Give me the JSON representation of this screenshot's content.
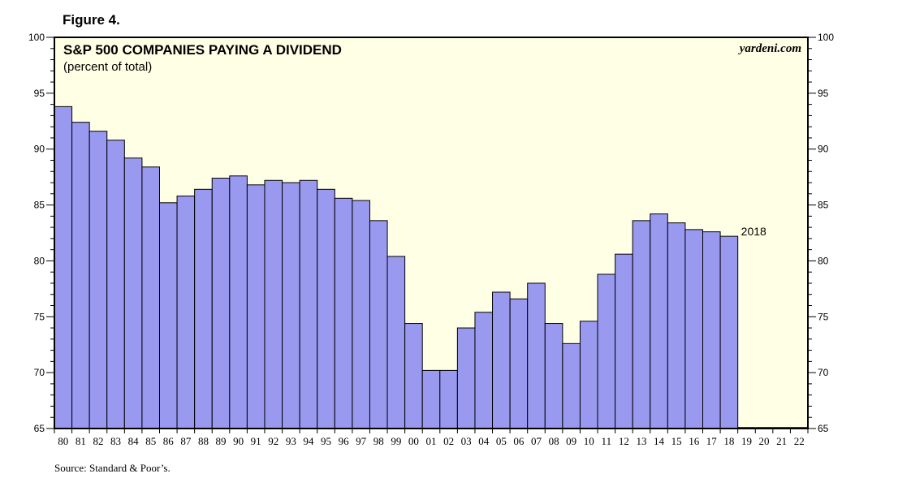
{
  "figure_label": "Figure 4.",
  "source": "Source: Standard & Poor’s.",
  "colors": {
    "plot_bg": "#ffffe6",
    "bar_fill": "#9999f0",
    "bar_stroke": "#000000"
  },
  "chart_data": {
    "type": "bar",
    "title": "S&P 500 COMPANIES PAYING A DIVIDEND",
    "subtitle": "(percent of total)",
    "watermark": "yardeni.com",
    "ylim": [
      65,
      100
    ],
    "yticks": [
      65,
      70,
      75,
      80,
      85,
      90,
      95,
      100
    ],
    "grid": false,
    "categories": [
      "80",
      "81",
      "82",
      "83",
      "84",
      "85",
      "86",
      "87",
      "88",
      "89",
      "90",
      "91",
      "92",
      "93",
      "94",
      "95",
      "96",
      "97",
      "98",
      "99",
      "00",
      "01",
      "02",
      "03",
      "04",
      "05",
      "06",
      "07",
      "08",
      "09",
      "10",
      "11",
      "12",
      "13",
      "14",
      "15",
      "16",
      "17",
      "18",
      "19",
      "20",
      "21",
      "22"
    ],
    "values": [
      93.8,
      92.4,
      91.6,
      90.8,
      89.2,
      88.4,
      85.2,
      85.8,
      86.4,
      87.4,
      87.6,
      86.8,
      87.2,
      87.0,
      87.2,
      86.4,
      85.6,
      85.4,
      83.6,
      80.4,
      74.4,
      70.2,
      70.2,
      74.0,
      75.4,
      77.2,
      76.6,
      78.0,
      74.4,
      72.6,
      74.6,
      78.8,
      80.6,
      83.6,
      84.2,
      83.4,
      82.8,
      82.6,
      82.2,
      null,
      null,
      null,
      null
    ],
    "annotation": {
      "text": "2018",
      "category": "18"
    }
  }
}
